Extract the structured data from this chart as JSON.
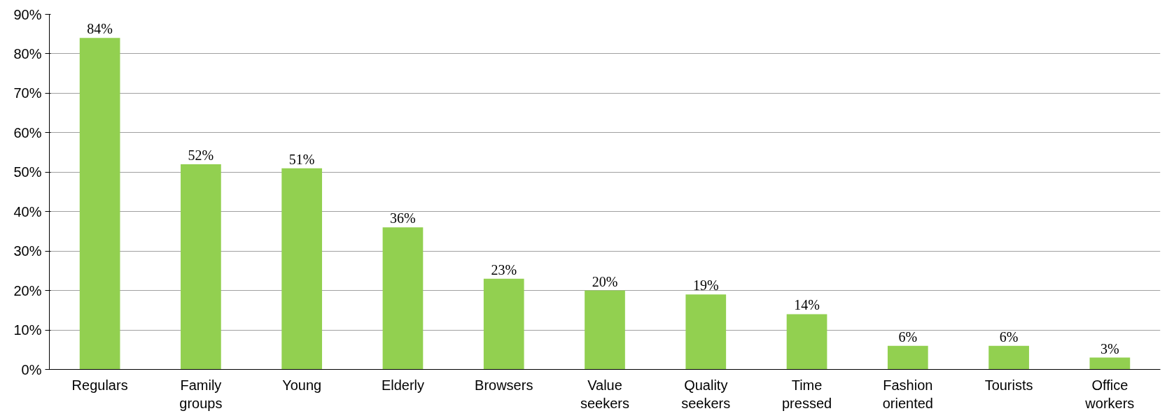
{
  "chart_data": {
    "type": "bar",
    "categories": [
      "Regulars",
      "Family groups",
      "Young",
      "Elderly",
      "Browsers",
      "Value seekers",
      "Quality seekers",
      "Time pressed",
      "Fashion oriented",
      "Tourists",
      "Office workers"
    ],
    "values": [
      84,
      52,
      51,
      36,
      23,
      20,
      19,
      14,
      6,
      6,
      3
    ],
    "value_labels": [
      "84%",
      "52%",
      "51%",
      "36%",
      "23%",
      "20%",
      "19%",
      "14%",
      "6%",
      "6%",
      "3%"
    ],
    "color": "#92d050",
    "ylim": [
      0,
      90
    ],
    "yticks": [
      {
        "value": 0,
        "label": "0%"
      },
      {
        "value": 10,
        "label": "10%"
      },
      {
        "value": 20,
        "label": "20%"
      },
      {
        "value": 30,
        "label": "30%"
      },
      {
        "value": 40,
        "label": "40%"
      },
      {
        "value": 50,
        "label": "50%"
      },
      {
        "value": 60,
        "label": "60%"
      },
      {
        "value": 70,
        "label": "70%"
      },
      {
        "value": 80,
        "label": "80%"
      },
      {
        "value": 90,
        "label": "90%"
      }
    ],
    "grid": "y"
  }
}
